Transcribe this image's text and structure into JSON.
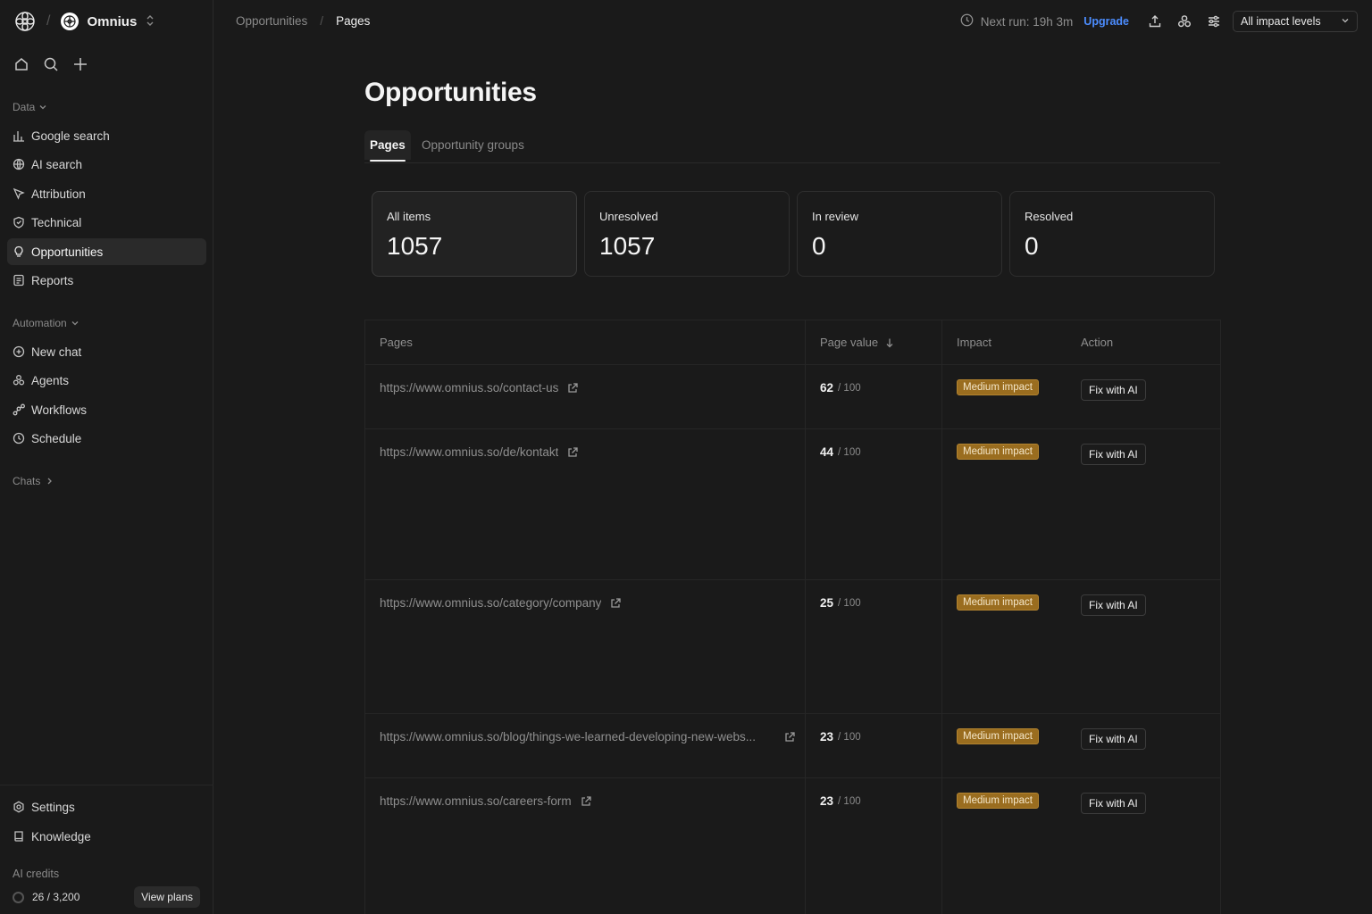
{
  "workspace": {
    "name": "Omnius"
  },
  "sidebar": {
    "data_label": "Data",
    "data_items": [
      {
        "label": "Google search",
        "icon": "bar-chart-icon"
      },
      {
        "label": "AI search",
        "icon": "globe-icon"
      },
      {
        "label": "Attribution",
        "icon": "cursor-icon"
      },
      {
        "label": "Technical",
        "icon": "shield-icon"
      },
      {
        "label": "Opportunities",
        "icon": "lightbulb-icon",
        "active": true
      },
      {
        "label": "Reports",
        "icon": "report-icon"
      }
    ],
    "automation_label": "Automation",
    "automation_items": [
      {
        "label": "New chat",
        "icon": "chat-plus-icon"
      },
      {
        "label": "Agents",
        "icon": "agents-icon"
      },
      {
        "label": "Workflows",
        "icon": "workflow-icon"
      },
      {
        "label": "Schedule",
        "icon": "clock-icon"
      }
    ],
    "chats_label": "Chats",
    "bottom_items": [
      {
        "label": "Settings",
        "icon": "gear-icon"
      },
      {
        "label": "Knowledge",
        "icon": "book-icon"
      }
    ],
    "credits_label": "AI credits",
    "credits_value": "26 / 3,200",
    "view_plans_label": "View plans"
  },
  "topbar": {
    "breadcrumb_parent": "Opportunities",
    "breadcrumb_current": "Pages",
    "next_run": "Next run: 19h 3m",
    "upgrade_label": "Upgrade",
    "impact_filter": "All impact levels"
  },
  "main": {
    "title": "Opportunities",
    "tabs": [
      {
        "label": "Pages",
        "active": true
      },
      {
        "label": "Opportunity groups",
        "active": false
      }
    ],
    "stats": [
      {
        "label": "All items",
        "value": "1057"
      },
      {
        "label": "Unresolved",
        "value": "1057"
      },
      {
        "label": "In review",
        "value": "0"
      },
      {
        "label": "Resolved",
        "value": "0"
      }
    ],
    "table": {
      "columns": [
        "Pages",
        "Page value",
        "Impact",
        "Action"
      ],
      "rows": [
        {
          "url": "https://www.omnius.so/contact-us",
          "value": "62",
          "max": "/ 100",
          "impact": "Medium impact",
          "action": "Fix with AI"
        },
        {
          "url": "https://www.omnius.so/de/kontakt",
          "value": "44",
          "max": "/ 100",
          "impact": "Medium impact",
          "action": "Fix with AI"
        },
        {
          "url": "https://www.omnius.so/category/company",
          "value": "25",
          "max": "/ 100",
          "impact": "Medium impact",
          "action": "Fix with AI"
        },
        {
          "url": "https://www.omnius.so/blog/things-we-learned-developing-new-webs...",
          "value": "23",
          "max": "/ 100",
          "impact": "Medium impact",
          "action": "Fix with AI"
        },
        {
          "url": "https://www.omnius.so/careers-form",
          "value": "23",
          "max": "/ 100",
          "impact": "Medium impact",
          "action": "Fix with AI"
        }
      ]
    }
  }
}
